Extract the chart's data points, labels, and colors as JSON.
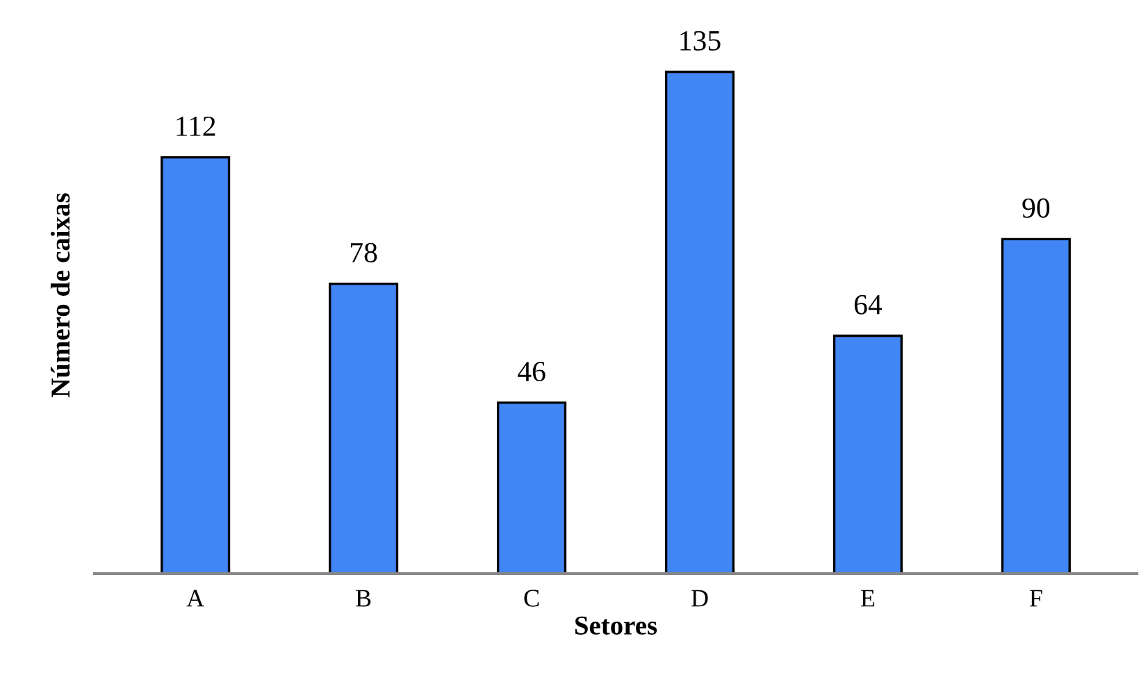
{
  "chart_data": {
    "type": "bar",
    "xlabel": "Setores",
    "ylabel": "Número de caixas",
    "categories": [
      "A",
      "B",
      "C",
      "D",
      "E",
      "F"
    ],
    "values": [
      112,
      78,
      46,
      135,
      64,
      90
    ],
    "color": "#4285f4",
    "data_labels": true,
    "grid": false,
    "legend": false
  }
}
